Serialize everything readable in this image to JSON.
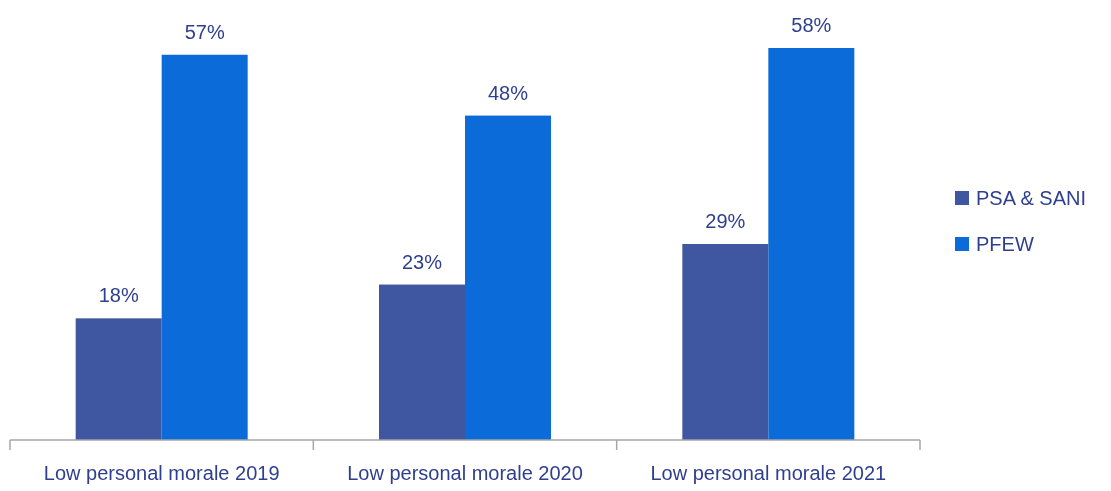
{
  "chart_data": {
    "type": "bar",
    "categories": [
      "Low personal morale 2019",
      "Low personal morale 2020",
      "Low personal morale 2021"
    ],
    "series": [
      {
        "name": "PSA & SANI",
        "color": "#3f56a0",
        "values": [
          18,
          23,
          29
        ],
        "value_labels": [
          "18%",
          "23%",
          "29%"
        ]
      },
      {
        "name": "PFEW",
        "color": "#0b6bd8",
        "values": [
          57,
          48,
          58
        ],
        "value_labels": [
          "57%",
          "48%",
          "58%"
        ]
      }
    ],
    "legend": "right"
  }
}
